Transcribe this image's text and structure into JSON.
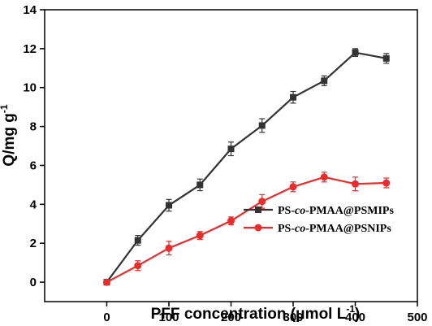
{
  "chart_data": {
    "type": "line",
    "title": "",
    "xlabel": {
      "main": "PFF concentration (μmol L",
      "sup": "-1",
      "end": ")"
    },
    "ylabel": {
      "main": "Q/mg g",
      "sup": "-1"
    },
    "xlim": [
      -100,
      500
    ],
    "ylim": [
      -1,
      14
    ],
    "x_ticks": [
      0,
      100,
      200,
      300,
      400,
      500
    ],
    "y_ticks": [
      0,
      2,
      4,
      6,
      8,
      10,
      12,
      14
    ],
    "grid": false,
    "legend_position": "center-right",
    "error_bars": true,
    "x": [
      0,
      50,
      100,
      150,
      200,
      250,
      300,
      350,
      400,
      450
    ],
    "series": [
      {
        "name": {
          "pre": "PS-",
          "ital": "co",
          "post": "-PMAA@PSMIPs"
        },
        "color": "#333333",
        "marker": "square",
        "values": [
          0,
          2.15,
          3.95,
          5.0,
          6.85,
          8.05,
          9.5,
          10.35,
          11.8,
          11.5
        ],
        "errors": [
          0.1,
          0.25,
          0.3,
          0.3,
          0.35,
          0.35,
          0.3,
          0.25,
          0.2,
          0.25
        ]
      },
      {
        "name": {
          "pre": "PS-",
          "ital": "co",
          "post": "-PMAA@PSNIPs"
        },
        "color": "#ee2b2b",
        "marker": "circle",
        "values": [
          0,
          0.85,
          1.75,
          2.4,
          3.15,
          4.15,
          4.9,
          5.4,
          5.05,
          5.1
        ],
        "errors": [
          0.1,
          0.25,
          0.35,
          0.2,
          0.2,
          0.35,
          0.25,
          0.25,
          0.35,
          0.25
        ]
      }
    ]
  }
}
